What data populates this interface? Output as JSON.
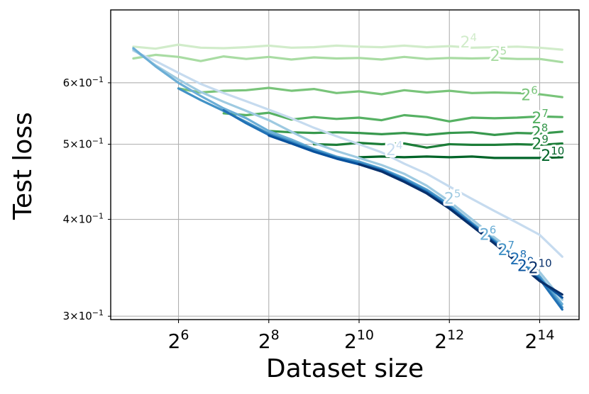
{
  "chart_data": {
    "type": "line",
    "title": "",
    "xlabel": "Dataset size",
    "ylabel": "Test loss",
    "x_scale": "log2",
    "y_scale": "log",
    "xlim": [
      22.6,
      30000
    ],
    "ylim": [
      0.297,
      0.745
    ],
    "grid": true,
    "x_ticks": [
      {
        "value": 64,
        "base": "2",
        "exp": "6"
      },
      {
        "value": 256,
        "base": "2",
        "exp": "8"
      },
      {
        "value": 1024,
        "base": "2",
        "exp": "10"
      },
      {
        "value": 4096,
        "base": "2",
        "exp": "12"
      },
      {
        "value": 16384,
        "base": "2",
        "exp": "14"
      }
    ],
    "y_ticks": [
      {
        "value": 0.3,
        "mant": "3",
        "times": "×",
        "base": "10",
        "exp": "−1"
      },
      {
        "value": 0.4,
        "mant": "4",
        "times": "×",
        "base": "10",
        "exp": "−1"
      },
      {
        "value": 0.5,
        "mant": "5",
        "times": "×",
        "base": "10",
        "exp": "−1"
      },
      {
        "value": 0.6,
        "mant": "6",
        "times": "×",
        "base": "10",
        "exp": "−1"
      }
    ],
    "green_series": [
      {
        "label_base": "2",
        "label_exp": "4",
        "label_x": 5500,
        "label_y": 0.676,
        "color": "#d1ecca",
        "x": [
          32,
          45,
          64,
          90,
          128,
          181,
          256,
          362,
          512,
          724,
          1024,
          1448,
          2048,
          2896,
          4096,
          5793,
          8192,
          11585,
          16384,
          23170
        ],
        "y": [
          0.668,
          0.664,
          0.672,
          0.666,
          0.665,
          0.667,
          0.67,
          0.666,
          0.667,
          0.67,
          0.668,
          0.667,
          0.67,
          0.667,
          0.669,
          0.666,
          0.667,
          0.668,
          0.666,
          0.662
        ]
      },
      {
        "label_base": "2",
        "label_exp": "5",
        "label_x": 8700,
        "label_y": 0.65,
        "color": "#a9dca3",
        "x": [
          32,
          45,
          64,
          90,
          128,
          181,
          256,
          362,
          512,
          724,
          1024,
          1448,
          2048,
          2896,
          4096,
          5793,
          8192,
          11585,
          16384,
          23170
        ],
        "y": [
          0.645,
          0.652,
          0.648,
          0.64,
          0.649,
          0.644,
          0.648,
          0.643,
          0.647,
          0.645,
          0.646,
          0.643,
          0.648,
          0.644,
          0.646,
          0.645,
          0.646,
          0.644,
          0.644,
          0.638
        ]
      },
      {
        "label_base": "2",
        "label_exp": "6",
        "label_x": 14000,
        "label_y": 0.578,
        "color": "#79c47a",
        "x": [
          64,
          90,
          128,
          181,
          256,
          362,
          512,
          724,
          1024,
          1448,
          2048,
          2896,
          4096,
          5793,
          8192,
          11585,
          16384,
          23170
        ],
        "y": [
          0.59,
          0.583,
          0.586,
          0.587,
          0.591,
          0.586,
          0.589,
          0.582,
          0.585,
          0.58,
          0.587,
          0.583,
          0.586,
          0.582,
          0.583,
          0.582,
          0.58,
          0.575
        ]
      },
      {
        "label_base": "2",
        "label_exp": "7",
        "label_x": 16500,
        "label_y": 0.54,
        "color": "#56b163",
        "x": [
          128,
          181,
          256,
          362,
          512,
          724,
          1024,
          1448,
          2048,
          2896,
          4096,
          5793,
          8192,
          11585,
          16384,
          23170
        ],
        "y": [
          0.548,
          0.545,
          0.549,
          0.538,
          0.542,
          0.539,
          0.541,
          0.537,
          0.545,
          0.542,
          0.535,
          0.541,
          0.54,
          0.541,
          0.543,
          0.542
        ]
      },
      {
        "label_base": "2",
        "label_exp": "8",
        "label_x": 16400,
        "label_y": 0.517,
        "color": "#37984d",
        "x": [
          256,
          362,
          512,
          724,
          1024,
          1448,
          2048,
          2896,
          4096,
          5793,
          8192,
          11585,
          16384,
          23170
        ],
        "y": [
          0.52,
          0.518,
          0.517,
          0.518,
          0.517,
          0.515,
          0.517,
          0.514,
          0.517,
          0.518,
          0.514,
          0.517,
          0.516,
          0.519
        ]
      },
      {
        "label_base": "2",
        "label_exp": "9",
        "label_x": 16500,
        "label_y": 0.5,
        "color": "#1c7d38",
        "x": [
          512,
          724,
          1024,
          1448,
          2048,
          2896,
          4096,
          5793,
          8192,
          11585,
          16384,
          23170
        ],
        "y": [
          0.5,
          0.499,
          0.502,
          0.5,
          0.501,
          0.495,
          0.5,
          0.499,
          0.499,
          0.5,
          0.499,
          0.501
        ]
      },
      {
        "label_base": "2",
        "label_exp": "10",
        "label_x": 20000,
        "label_y": 0.483,
        "color": "#006428",
        "x": [
          1024,
          1448,
          2048,
          2896,
          4096,
          5793,
          8192,
          11585,
          16384,
          23170
        ],
        "y": [
          0.481,
          0.482,
          0.481,
          0.482,
          0.481,
          0.482,
          0.48,
          0.48,
          0.48,
          0.481
        ]
      }
    ],
    "blue_series": [
      {
        "label_base": "2",
        "label_exp": "4",
        "label_x": 1760,
        "label_y": 0.491,
        "color": "#c6dbef",
        "x": [
          32,
          45,
          64,
          90,
          128,
          181,
          256,
          362,
          512,
          724,
          1024,
          1448,
          2048,
          2896,
          4096,
          5793,
          8192,
          11585,
          16384,
          23170
        ],
        "y": [
          0.66,
          0.64,
          0.618,
          0.598,
          0.582,
          0.568,
          0.554,
          0.54,
          0.525,
          0.512,
          0.5,
          0.488,
          0.472,
          0.458,
          0.441,
          0.425,
          0.41,
          0.396,
          0.382,
          0.358
        ]
      },
      {
        "label_base": "2",
        "label_exp": "5",
        "label_x": 4300,
        "label_y": 0.425,
        "color": "#9ecae1",
        "x": [
          32,
          45,
          64,
          90,
          128,
          181,
          256,
          362,
          512,
          724,
          1024,
          1448,
          2048,
          2896,
          4096,
          5793,
          8192,
          11585,
          16384,
          23170
        ],
        "y": [
          0.662,
          0.632,
          0.606,
          0.584,
          0.567,
          0.552,
          0.537,
          0.519,
          0.502,
          0.49,
          0.48,
          0.47,
          0.458,
          0.442,
          0.422,
          0.4,
          0.379,
          0.36,
          0.342,
          0.315
        ]
      },
      {
        "label_base": "2",
        "label_exp": "6",
        "label_x": 7400,
        "label_y": 0.382,
        "color": "#6baed6",
        "x": [
          32,
          45,
          64,
          90,
          128,
          181,
          256,
          362,
          512,
          724,
          1024,
          1448,
          2048,
          2896,
          4096,
          5793,
          8192,
          11585,
          16384,
          23170
        ],
        "y": [
          0.665,
          0.63,
          0.6,
          0.577,
          0.556,
          0.54,
          0.52,
          0.507,
          0.493,
          0.482,
          0.475,
          0.465,
          0.452,
          0.437,
          0.418,
          0.396,
          0.376,
          0.357,
          0.338,
          0.311
        ]
      },
      {
        "label_base": "2",
        "label_exp": "7",
        "label_x": 9800,
        "label_y": 0.365,
        "color": "#4292c6",
        "x": [
          64,
          90,
          128,
          181,
          256,
          362,
          512,
          724,
          1024,
          1448,
          2048,
          2896,
          4096,
          5793,
          8192,
          11585,
          16384,
          23170
        ],
        "y": [
          0.59,
          0.57,
          0.552,
          0.534,
          0.516,
          0.504,
          0.492,
          0.481,
          0.474,
          0.464,
          0.451,
          0.436,
          0.417,
          0.395,
          0.375,
          0.356,
          0.337,
          0.308
        ]
      },
      {
        "label_base": "2",
        "label_exp": "8",
        "label_x": 11800,
        "label_y": 0.355,
        "color": "#2171b5",
        "x": [
          128,
          181,
          256,
          362,
          512,
          724,
          1024,
          1448,
          2048,
          2896,
          4096,
          5793,
          8192,
          11585,
          16384,
          23170
        ],
        "y": [
          0.553,
          0.532,
          0.514,
          0.502,
          0.49,
          0.48,
          0.472,
          0.463,
          0.449,
          0.434,
          0.415,
          0.394,
          0.374,
          0.354,
          0.335,
          0.306
        ]
      },
      {
        "label_base": "2",
        "label_exp": "9",
        "label_x": 13200,
        "label_y": 0.348,
        "color": "#08519c",
        "x": [
          256,
          362,
          512,
          724,
          1024,
          1448,
          2048,
          2896,
          4096,
          5793,
          8192,
          11585,
          16384,
          23170
        ],
        "y": [
          0.513,
          0.501,
          0.489,
          0.479,
          0.471,
          0.462,
          0.448,
          0.433,
          0.414,
          0.393,
          0.373,
          0.353,
          0.334,
          0.317
        ]
      },
      {
        "label_base": "2",
        "label_exp": "10",
        "label_x": 16500,
        "label_y": 0.346,
        "color": "#08306b",
        "x": [
          1024,
          1448,
          2048,
          2896,
          4096,
          5793,
          8192,
          11585,
          16384,
          23170
        ],
        "y": [
          0.471,
          0.461,
          0.447,
          0.432,
          0.413,
          0.392,
          0.372,
          0.352,
          0.333,
          0.32
        ]
      }
    ]
  }
}
